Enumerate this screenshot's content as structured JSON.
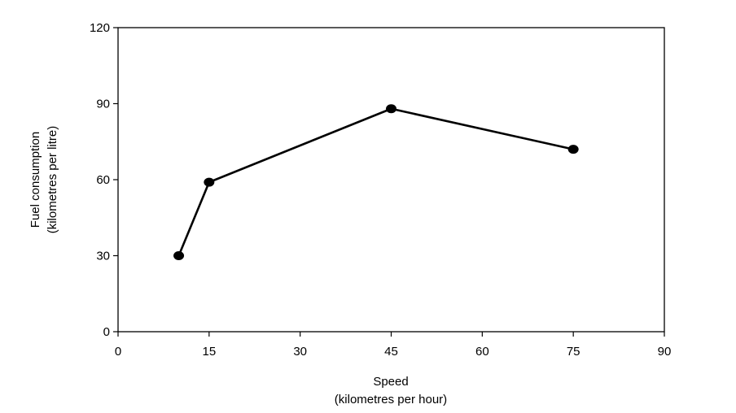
{
  "chart_data": {
    "type": "line",
    "title": "",
    "xlabel": "Speed",
    "xlabel_sub": "(kilometres per hour)",
    "ylabel": "Fuel consumption",
    "ylabel_sub": "(kilometres per litre)",
    "xlim": [
      0,
      90
    ],
    "ylim": [
      0,
      120
    ],
    "xticks": [
      0,
      15,
      30,
      45,
      60,
      75,
      90
    ],
    "yticks": [
      0,
      30,
      60,
      90,
      120
    ],
    "grid": false,
    "legend": "none",
    "series": [
      {
        "x": [
          10,
          15,
          45,
          75
        ],
        "y": [
          30,
          59,
          88,
          72
        ],
        "color": "#000000",
        "marker": "circle"
      }
    ]
  }
}
